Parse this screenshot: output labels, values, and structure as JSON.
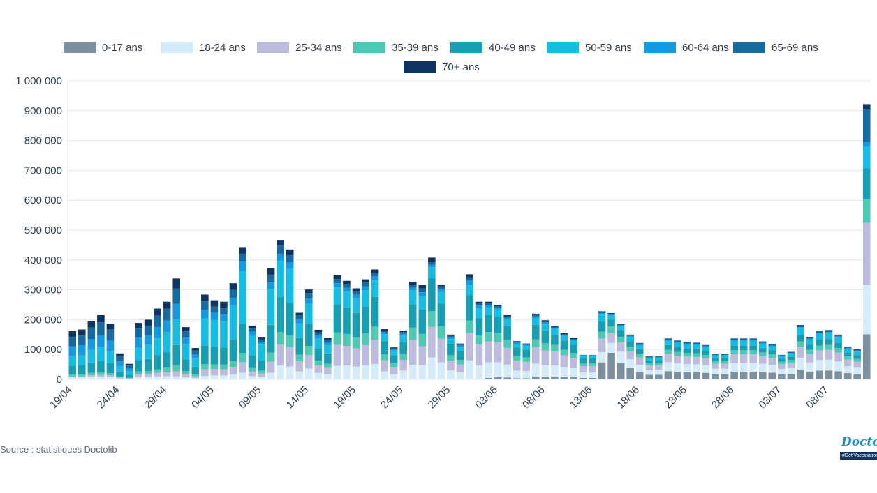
{
  "chart_data": {
    "type": "bar",
    "stacked": true,
    "title": "",
    "xlabel": "",
    "ylabel": "",
    "ylim": [
      0,
      1000000
    ],
    "yticks": [
      0,
      100000,
      200000,
      300000,
      400000,
      500000,
      600000,
      700000,
      800000,
      900000,
      1000000
    ],
    "ytick_labels": [
      "0",
      "100 000",
      "200 000",
      "300 000",
      "400 000",
      "500 000",
      "600 000",
      "700 000",
      "800 000",
      "900 000",
      "1 000 000"
    ],
    "grid": true,
    "legend_position": "top",
    "categories": [
      "19/04",
      "20/04",
      "21/04",
      "22/04",
      "23/04",
      "24/04",
      "25/04",
      "26/04",
      "27/04",
      "28/04",
      "29/04",
      "30/04",
      "01/05",
      "02/05",
      "03/05",
      "04/05",
      "05/05",
      "06/05",
      "07/05",
      "08/05",
      "09/05",
      "10/05",
      "11/05",
      "12/05",
      "13/05",
      "14/05",
      "15/05",
      "16/05",
      "17/05",
      "18/05",
      "19/05",
      "20/05",
      "21/05",
      "22/05",
      "23/05",
      "24/05",
      "25/05",
      "26/05",
      "27/05",
      "28/05",
      "29/05",
      "30/05",
      "31/05",
      "01/06",
      "02/06",
      "03/06",
      "04/06",
      "05/06",
      "06/06",
      "07/06",
      "08/06",
      "09/06",
      "10/06",
      "11/06",
      "12/06",
      "13/06",
      "14/06",
      "15/06",
      "16/06",
      "17/06",
      "18/06",
      "19/06",
      "20/06",
      "21/06",
      "22/06",
      "23/06",
      "24/06",
      "25/06",
      "26/06",
      "27/06",
      "28/06",
      "29/06",
      "30/06",
      "01/07",
      "02/07",
      "03/07",
      "04/07",
      "05/07",
      "06/07",
      "07/07",
      "08/07",
      "09/07",
      "10/07",
      "11/07",
      "12/07"
    ],
    "xtick_labels": [
      "19/04",
      "24/04",
      "29/04",
      "04/05",
      "09/05",
      "14/05",
      "19/05",
      "24/05",
      "29/05",
      "03/06",
      "08/06",
      "13/06",
      "18/06",
      "23/06",
      "28/06",
      "03/07",
      "08/07"
    ],
    "xtick_indices": [
      0,
      5,
      10,
      15,
      20,
      25,
      30,
      35,
      40,
      45,
      50,
      55,
      60,
      65,
      70,
      75,
      80
    ],
    "totals": [
      162000,
      167000,
      195000,
      215000,
      187000,
      87000,
      52000,
      189000,
      200000,
      237000,
      260000,
      338000,
      175000,
      105000,
      284000,
      265000,
      260000,
      322000,
      443000,
      180000,
      140000,
      373000,
      467000,
      435000,
      223000,
      301000,
      166000,
      138000,
      350000,
      330000,
      305000,
      335000,
      368000,
      168000,
      107000,
      163000,
      327000,
      317000,
      408000,
      318000,
      150000,
      120000,
      352000,
      260000,
      260000,
      250000,
      215000,
      128000,
      120000,
      220000,
      198000,
      180000,
      155000,
      138000,
      82000,
      82000,
      228000,
      222000,
      185000,
      150000,
      122000,
      77000,
      77000,
      137000,
      130000,
      125000,
      123000,
      115000,
      85000,
      85000,
      137000,
      137000,
      137000,
      127000,
      118000,
      82000,
      92000,
      182000,
      142000,
      162000,
      165000,
      150000,
      110000,
      100000,
      922000
    ],
    "series": [
      {
        "name": "0-17 ans",
        "shares": [
          0,
          0,
          0,
          0,
          0,
          0,
          0,
          0,
          0,
          0,
          0,
          0,
          0,
          0,
          0,
          0,
          0,
          0,
          0,
          0,
          0,
          0,
          0,
          0,
          0,
          0,
          0,
          0,
          0,
          0,
          0,
          0,
          0,
          0,
          0,
          0,
          0,
          0,
          0,
          0,
          0,
          0,
          0,
          0,
          0.02,
          0.03,
          0.03,
          0.03,
          0.03,
          0.04,
          0.04,
          0.05,
          0.05,
          0.05,
          0.06,
          0.06,
          0.25,
          0.4,
          0.3,
          0.25,
          0.2,
          0.2,
          0.2,
          0.2,
          0.19,
          0.19,
          0.19,
          0.19,
          0.2,
          0.2,
          0.19,
          0.19,
          0.19,
          0.19,
          0.19,
          0.2,
          0.19,
          0.18,
          0.18,
          0.18,
          0.18,
          0.18,
          0.19,
          0.18,
          0.19
        ]
      },
      {
        "name": "18-24 ans",
        "shares": [
          0.04,
          0.04,
          0.04,
          0.04,
          0.04,
          0.04,
          0.04,
          0.04,
          0.04,
          0.04,
          0.04,
          0.03,
          0.04,
          0.04,
          0.04,
          0.05,
          0.05,
          0.05,
          0.05,
          0.06,
          0.06,
          0.06,
          0.1,
          0.1,
          0.12,
          0.12,
          0.13,
          0.13,
          0.13,
          0.14,
          0.14,
          0.14,
          0.14,
          0.16,
          0.16,
          0.18,
          0.15,
          0.15,
          0.18,
          0.18,
          0.2,
          0.2,
          0.18,
          0.18,
          0.2,
          0.2,
          0.2,
          0.2,
          0.2,
          0.2,
          0.2,
          0.21,
          0.21,
          0.22,
          0.22,
          0.22,
          0.15,
          0.15,
          0.2,
          0.2,
          0.2,
          0.2,
          0.22,
          0.22,
          0.22,
          0.22,
          0.22,
          0.22,
          0.22,
          0.22,
          0.22,
          0.22,
          0.22,
          0.22,
          0.22,
          0.22,
          0.22,
          0.22,
          0.22,
          0.22,
          0.22,
          0.22,
          0.21,
          0.21,
          0.21
        ]
      },
      {
        "name": "25-34 ans",
        "shares": [
          0.02,
          0.02,
          0.03,
          0.03,
          0.03,
          0.03,
          0.03,
          0.05,
          0.05,
          0.05,
          0.05,
          0.05,
          0.06,
          0.06,
          0.08,
          0.08,
          0.08,
          0.08,
          0.08,
          0.08,
          0.08,
          0.1,
          0.15,
          0.15,
          0.15,
          0.15,
          0.15,
          0.15,
          0.2,
          0.2,
          0.2,
          0.2,
          0.22,
          0.22,
          0.22,
          0.22,
          0.25,
          0.2,
          0.25,
          0.25,
          0.22,
          0.22,
          0.26,
          0.27,
          0.27,
          0.27,
          0.26,
          0.26,
          0.26,
          0.25,
          0.25,
          0.26,
          0.26,
          0.25,
          0.26,
          0.26,
          0.2,
          0.15,
          0.17,
          0.18,
          0.2,
          0.2,
          0.2,
          0.2,
          0.2,
          0.2,
          0.2,
          0.2,
          0.2,
          0.2,
          0.2,
          0.2,
          0.2,
          0.2,
          0.2,
          0.2,
          0.2,
          0.2,
          0.2,
          0.2,
          0.2,
          0.2,
          0.2,
          0.2,
          0.26
        ]
      },
      {
        "name": "35-39 ans",
        "shares": [
          0.04,
          0.04,
          0.04,
          0.04,
          0.04,
          0.04,
          0.04,
          0.05,
          0.05,
          0.05,
          0.06,
          0.06,
          0.06,
          0.06,
          0.06,
          0.06,
          0.06,
          0.06,
          0.07,
          0.07,
          0.07,
          0.08,
          0.09,
          0.09,
          0.1,
          0.1,
          0.1,
          0.1,
          0.12,
          0.12,
          0.12,
          0.12,
          0.12,
          0.12,
          0.12,
          0.12,
          0.13,
          0.13,
          0.13,
          0.13,
          0.12,
          0.12,
          0.12,
          0.12,
          0.12,
          0.12,
          0.12,
          0.12,
          0.12,
          0.12,
          0.12,
          0.12,
          0.12,
          0.12,
          0.12,
          0.12,
          0.1,
          0.1,
          0.1,
          0.1,
          0.1,
          0.1,
          0.1,
          0.1,
          0.1,
          0.1,
          0.1,
          0.1,
          0.1,
          0.1,
          0.1,
          0.1,
          0.1,
          0.1,
          0.1,
          0.1,
          0.1,
          0.1,
          0.1,
          0.1,
          0.1,
          0.1,
          0.1,
          0.1,
          0.1
        ]
      },
      {
        "name": "40-49 ans",
        "shares": [
          0.18,
          0.18,
          0.18,
          0.18,
          0.18,
          0.18,
          0.18,
          0.2,
          0.2,
          0.2,
          0.2,
          0.2,
          0.22,
          0.22,
          0.22,
          0.22,
          0.22,
          0.22,
          0.22,
          0.24,
          0.24,
          0.25,
          0.25,
          0.25,
          0.25,
          0.25,
          0.25,
          0.25,
          0.27,
          0.27,
          0.27,
          0.27,
          0.27,
          0.26,
          0.26,
          0.24,
          0.24,
          0.26,
          0.27,
          0.24,
          0.24,
          0.24,
          0.24,
          0.22,
          0.22,
          0.22,
          0.22,
          0.22,
          0.22,
          0.22,
          0.22,
          0.2,
          0.2,
          0.2,
          0.2,
          0.2,
          0.15,
          0.1,
          0.12,
          0.12,
          0.13,
          0.13,
          0.12,
          0.12,
          0.12,
          0.12,
          0.12,
          0.12,
          0.12,
          0.12,
          0.12,
          0.12,
          0.12,
          0.12,
          0.12,
          0.12,
          0.12,
          0.12,
          0.12,
          0.12,
          0.12,
          0.12,
          0.12,
          0.12,
          0.13
        ]
      },
      {
        "name": "50-59 ans",
        "shares": [
          0.2,
          0.2,
          0.22,
          0.22,
          0.22,
          0.22,
          0.22,
          0.22,
          0.24,
          0.24,
          0.26,
          0.26,
          0.3,
          0.3,
          0.32,
          0.34,
          0.34,
          0.36,
          0.4,
          0.36,
          0.38,
          0.32,
          0.26,
          0.26,
          0.22,
          0.22,
          0.2,
          0.2,
          0.16,
          0.16,
          0.16,
          0.16,
          0.15,
          0.14,
          0.14,
          0.14,
          0.14,
          0.14,
          0.09,
          0.12,
          0.12,
          0.12,
          0.1,
          0.12,
          0.1,
          0.1,
          0.1,
          0.1,
          0.1,
          0.1,
          0.1,
          0.1,
          0.1,
          0.1,
          0.1,
          0.1,
          0.1,
          0.06,
          0.07,
          0.1,
          0.1,
          0.1,
          0.1,
          0.1,
          0.11,
          0.11,
          0.11,
          0.11,
          0.1,
          0.1,
          0.11,
          0.11,
          0.11,
          0.11,
          0.11,
          0.1,
          0.11,
          0.12,
          0.12,
          0.12,
          0.12,
          0.12,
          0.11,
          0.12,
          0.09
        ]
      },
      {
        "name": "60-64 ans",
        "shares": [
          0.2,
          0.2,
          0.18,
          0.18,
          0.18,
          0.18,
          0.18,
          0.18,
          0.16,
          0.16,
          0.15,
          0.15,
          0.12,
          0.12,
          0.1,
          0.09,
          0.09,
          0.08,
          0.07,
          0.08,
          0.07,
          0.06,
          0.05,
          0.05,
          0.06,
          0.06,
          0.06,
          0.06,
          0.04,
          0.04,
          0.04,
          0.04,
          0.04,
          0.04,
          0.04,
          0.04,
          0.03,
          0.04,
          0.02,
          0.03,
          0.04,
          0.04,
          0.04,
          0.04,
          0.03,
          0.02,
          0.03,
          0.03,
          0.03,
          0.03,
          0.03,
          0.02,
          0.02,
          0.02,
          0.02,
          0.02,
          0.02,
          0.02,
          0.02,
          0.02,
          0.02,
          0.02,
          0.02,
          0.02,
          0.02,
          0.02,
          0.02,
          0.02,
          0.02,
          0.02,
          0.02,
          0.02,
          0.02,
          0.02,
          0.02,
          0.02,
          0.02,
          0.02,
          0.02,
          0.02,
          0.02,
          0.02,
          0.02,
          0.02,
          0.02
        ]
      },
      {
        "name": "65-69 ans",
        "shares": [
          0.2,
          0.2,
          0.2,
          0.2,
          0.2,
          0.2,
          0.2,
          0.16,
          0.16,
          0.16,
          0.15,
          0.15,
          0.12,
          0.12,
          0.1,
          0.08,
          0.08,
          0.08,
          0.06,
          0.07,
          0.06,
          0.07,
          0.06,
          0.06,
          0.06,
          0.06,
          0.06,
          0.06,
          0.04,
          0.04,
          0.04,
          0.04,
          0.03,
          0.03,
          0.03,
          0.03,
          0.03,
          0.04,
          0.02,
          0.03,
          0.03,
          0.03,
          0.03,
          0.03,
          0.02,
          0.02,
          0.02,
          0.02,
          0.02,
          0.02,
          0.02,
          0.02,
          0.02,
          0.02,
          0.01,
          0.01,
          0.02,
          0.01,
          0.01,
          0.02,
          0.04,
          0.04,
          0.03,
          0.03,
          0.03,
          0.03,
          0.03,
          0.03,
          0.03,
          0.03,
          0.03,
          0.03,
          0.03,
          0.03,
          0.03,
          0.03,
          0.03,
          0.03,
          0.03,
          0.03,
          0.03,
          0.03,
          0.03,
          0.03,
          0.14
        ]
      },
      {
        "name": "70+ ans",
        "shares": [
          0.12,
          0.12,
          0.11,
          0.11,
          0.11,
          0.11,
          0.11,
          0.1,
          0.1,
          0.1,
          0.09,
          0.1,
          0.08,
          0.08,
          0.08,
          0.08,
          0.08,
          0.07,
          0.05,
          0.04,
          0.04,
          0.06,
          0.04,
          0.04,
          0.04,
          0.04,
          0.05,
          0.05,
          0.04,
          0.03,
          0.03,
          0.03,
          0.03,
          0.03,
          0.03,
          0.03,
          0.03,
          0.04,
          0.04,
          0.02,
          0.03,
          0.03,
          0.03,
          0.02,
          0.02,
          0.02,
          0.02,
          0.02,
          0.02,
          0.02,
          0.02,
          0.02,
          0.02,
          0.02,
          0.01,
          0.01,
          0.01,
          0.01,
          0.01,
          0.01,
          0.01,
          0.01,
          0.01,
          0.01,
          0.01,
          0.01,
          0.01,
          0.01,
          0.01,
          0.01,
          0.01,
          0.01,
          0.01,
          0.01,
          0.01,
          0.01,
          0.01,
          0.01,
          0.01,
          0.01,
          0.01,
          0.01,
          0.02,
          0.02,
          0.02
        ]
      }
    ]
  },
  "colors": {
    "series": [
      "#7c909f",
      "#d4ecf9",
      "#bdbcdf",
      "#4ec8b3",
      "#179eb3",
      "#16bde0",
      "#1599e0",
      "#166aa0",
      "#0f3461"
    ],
    "grid": "#e3e7ea",
    "axis_text": "#2f3e4e"
  },
  "source": "Source : statistiques Doctolib",
  "logo": {
    "wordmark": "Doctolib",
    "tagline": "#DéfiVaccination"
  }
}
